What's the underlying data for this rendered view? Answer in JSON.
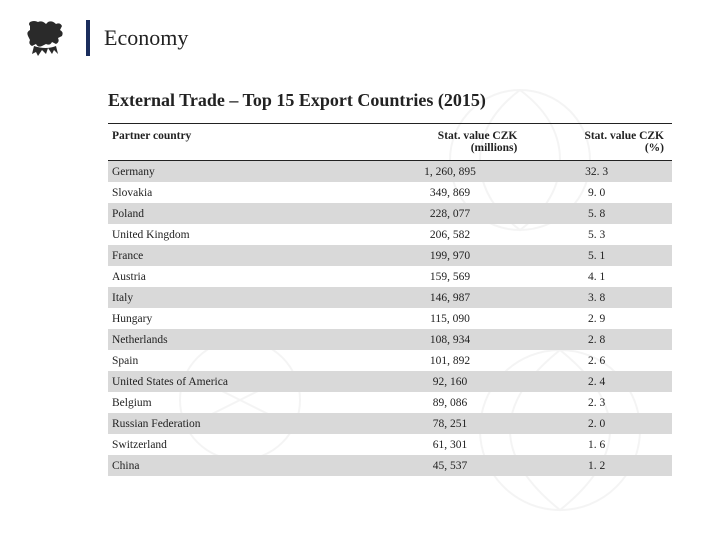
{
  "header": {
    "title": "Economy"
  },
  "subtitle": "External Trade – Top 15 Export Countries (2015)",
  "table": {
    "columns": [
      {
        "label": "Partner country",
        "align": "left"
      },
      {
        "label": "Stat. value CZK\n(millions)",
        "align": "right"
      },
      {
        "label": "Stat. value CZK\n(%)",
        "align": "right"
      }
    ],
    "rows": [
      {
        "country": "Germany",
        "value": "1, 260, 895",
        "pct": "32. 3"
      },
      {
        "country": "Slovakia",
        "value": "349, 869",
        "pct": "9. 0"
      },
      {
        "country": "Poland",
        "value": "228, 077",
        "pct": "5. 8"
      },
      {
        "country": "United Kingdom",
        "value": "206, 582",
        "pct": "5. 3"
      },
      {
        "country": "France",
        "value": "199, 970",
        "pct": "5. 1"
      },
      {
        "country": "Austria",
        "value": "159, 569",
        "pct": "4. 1"
      },
      {
        "country": "Italy",
        "value": "146, 987",
        "pct": "3. 8"
      },
      {
        "country": "Hungary",
        "value": "115, 090",
        "pct": "2. 9"
      },
      {
        "country": "Netherlands",
        "value": "108, 934",
        "pct": "2. 8"
      },
      {
        "country": "Spain",
        "value": "101, 892",
        "pct": "2. 6"
      },
      {
        "country": "United States of America",
        "value": "92, 160",
        "pct": "2. 4"
      },
      {
        "country": "Belgium",
        "value": "89, 086",
        "pct": "2. 3"
      },
      {
        "country": "Russian Federation",
        "value": "78, 251",
        "pct": "2. 0"
      },
      {
        "country": "Switzerland",
        "value": "61, 301",
        "pct": "1. 6"
      },
      {
        "country": "China",
        "value": "45, 537",
        "pct": "1. 2"
      }
    ]
  },
  "colors": {
    "accent_bar": "#1a2d5c",
    "row_alt": "#d9d9d9",
    "text": "#222222",
    "emblem": "#2a2a2a",
    "watermark": "#888888"
  }
}
